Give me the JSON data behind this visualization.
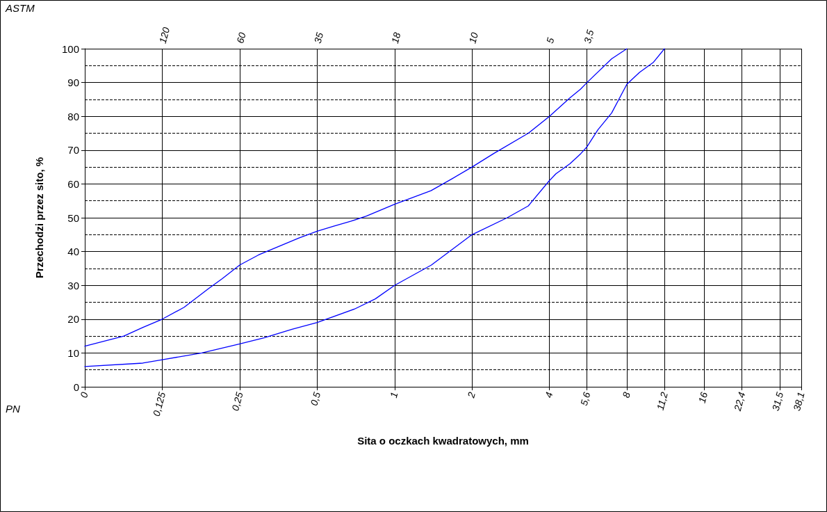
{
  "chart_data": {
    "type": "line",
    "xlabel": "Sita o oczkach kwadratowych, mm",
    "ylabel": "Przechodzi przez sito, %",
    "x2label": "ASTM",
    "annotations": [
      "120",
      "60",
      "35",
      "18",
      "10",
      "5",
      "3,5",
      "PN"
    ],
    "log": "x",
    "grid": true,
    "marker": "none",
    "line_style": "solid",
    "xlim": [
      0.0625,
      38.1
    ],
    "xticks": [
      {
        "value": 0.0625,
        "label": "0"
      },
      {
        "value": 0.125,
        "label": "0,125"
      },
      {
        "value": 0.25,
        "label": "0,25"
      },
      {
        "value": 0.5,
        "label": "0,5"
      },
      1,
      2,
      4,
      {
        "value": 5.6,
        "label": "5,6"
      },
      8,
      {
        "value": 11.2,
        "label": "11,2"
      },
      16,
      {
        "value": 22.4,
        "label": "22,4"
      },
      {
        "value": 31.5,
        "label": "31,5"
      },
      {
        "value": 38.1,
        "label": "38,1"
      }
    ],
    "ylim": [
      0,
      100
    ],
    "yticks": [
      0,
      10,
      20,
      30,
      40,
      50,
      60,
      70,
      80,
      90,
      100
    ],
    "ref_lines": [
      {
        "axis": "y",
        "value": 5,
        "color": "#000000",
        "line_style": "dashed"
      },
      {
        "axis": "y",
        "value": 15,
        "color": "#000000",
        "line_style": "dashed"
      },
      {
        "axis": "y",
        "value": 25,
        "color": "#000000",
        "line_style": "dashed"
      },
      {
        "axis": "y",
        "value": 35,
        "color": "#000000",
        "line_style": "dashed"
      },
      {
        "axis": "y",
        "value": 45,
        "color": "#000000",
        "line_style": "dashed"
      },
      {
        "axis": "y",
        "value": 55,
        "color": "#000000",
        "line_style": "dashed"
      },
      {
        "axis": "y",
        "value": 65,
        "color": "#000000",
        "line_style": "dashed"
      },
      {
        "axis": "y",
        "value": 75,
        "color": "#000000",
        "line_style": "dashed"
      },
      {
        "axis": "y",
        "value": 85,
        "color": "#000000",
        "line_style": "dashed"
      },
      {
        "axis": "y",
        "value": 95,
        "color": "#000000",
        "line_style": "dashed"
      }
    ],
    "series": [
      {
        "color": "#0000ff",
        "x": [
          0.0625,
          0.0886,
          0.1048,
          0.125,
          0.152,
          0.189,
          0.214,
          0.25,
          0.296,
          0.425,
          0.5,
          0.58,
          0.678,
          0.777,
          1,
          1.385,
          1.67,
          2,
          2.43,
          3.31,
          4,
          4.81,
          5.28,
          5.6,
          6.98,
          8
        ],
        "values": [
          12,
          15,
          17.5,
          20,
          23.5,
          29,
          32,
          36,
          39,
          44,
          46,
          47.5,
          49,
          50.5,
          54,
          58,
          61.5,
          65,
          69,
          75,
          80,
          85.5,
          88,
          90,
          97,
          100
        ]
      },
      {
        "color": "#0000ff",
        "x": [
          0.0625,
          0.105,
          0.125,
          0.178,
          0.25,
          0.311,
          0.399,
          0.5,
          0.699,
          0.842,
          1,
          1.39,
          2,
          2.74,
          3.31,
          4,
          4.24,
          4.81,
          5.3,
          5.6,
          6.17,
          6.98,
          8,
          8.96,
          10.15,
          11.2
        ],
        "values": [
          6,
          7,
          8,
          10,
          12.7,
          14.5,
          17,
          19,
          23,
          26,
          30,
          36,
          45,
          50,
          53.5,
          61,
          63,
          66,
          69,
          71,
          76,
          81,
          89.5,
          93,
          96,
          100
        ]
      }
    ]
  }
}
